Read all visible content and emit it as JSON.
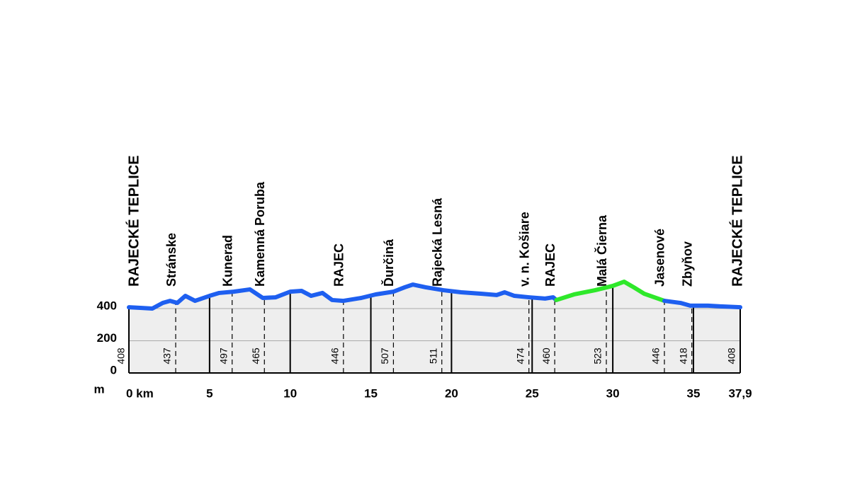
{
  "chart_data": {
    "type": "elevation-profile",
    "xlim": [
      0,
      37.9
    ],
    "ylim": [
      0,
      600
    ],
    "xticks": [
      {
        "value": 0,
        "label": "0 km"
      },
      5,
      10,
      15,
      20,
      25,
      30,
      35,
      {
        "value": 37.9,
        "label": "37,9"
      }
    ],
    "yticks": [
      0,
      200,
      400
    ],
    "y_unit": "m",
    "fill_color": "#eeeeee",
    "segments": [
      {
        "color": "#1e5ff0",
        "x": [
          0,
          0.8,
          1.45,
          2.1,
          2.55,
          3.0,
          3.5,
          4.1,
          5.0,
          5.6,
          6.5,
          7.5,
          8.3,
          9.1,
          10.0,
          10.7,
          11.3,
          12.0,
          12.6,
          13.3,
          14.4,
          15.3,
          16.4,
          17.1,
          17.6,
          18.4,
          19.5,
          20.6,
          21.9,
          22.8,
          23.3,
          23.9,
          24.8,
          25.8,
          26.3,
          26.5
        ],
        "values": [
          408,
          404,
          400,
          435,
          448,
          435,
          479,
          448,
          479,
          497,
          505,
          519,
          466,
          470,
          505,
          510,
          479,
          497,
          453,
          448,
          466,
          488,
          505,
          532,
          549,
          532,
          514,
          501,
          492,
          484,
          501,
          479,
          470,
          462,
          470,
          453
        ]
      },
      {
        "color": "#2ee82a",
        "x": [
          26.5,
          27.6,
          28.9,
          30.0,
          30.7,
          31.3,
          31.95,
          33.2
        ],
        "values": [
          453,
          488,
          514,
          541,
          567,
          532,
          492,
          448
        ]
      },
      {
        "color": "#1e5ff0",
        "x": [
          33.2,
          34.2,
          34.8,
          35.9,
          36.8,
          37.9
        ],
        "values": [
          448,
          435,
          418,
          418,
          413,
          408
        ]
      }
    ],
    "waypoints": [
      {
        "name": "RAJECKÉ TEPLICE",
        "km": 0,
        "elevation": 408
      },
      {
        "name": "Stránske",
        "km": 2.9,
        "elevation": 437
      },
      {
        "name": "Kunerad",
        "km": 6.4,
        "elevation": 497
      },
      {
        "name": "Kamenná Poruba",
        "km": 8.4,
        "elevation": 465
      },
      {
        "name": "RAJEC",
        "km": 13.3,
        "elevation": 446
      },
      {
        "name": "Ďurčiná",
        "km": 16.4,
        "elevation": 507
      },
      {
        "name": "Rajecká Lesná",
        "km": 19.4,
        "elevation": 511
      },
      {
        "name": "v. n. Košiare",
        "km": 24.8,
        "elevation": 474
      },
      {
        "name": "RAJEC",
        "km": 26.4,
        "elevation": 460
      },
      {
        "name": "Malá Čierna",
        "km": 29.6,
        "elevation": 523
      },
      {
        "name": "Jasenové",
        "km": 33.2,
        "elevation": 446
      },
      {
        "name": "Zbyňov",
        "km": 34.9,
        "elevation": 418
      },
      {
        "name": "RAJECKÉ TEPLICE",
        "km": 37.9,
        "elevation": 408
      }
    ]
  }
}
